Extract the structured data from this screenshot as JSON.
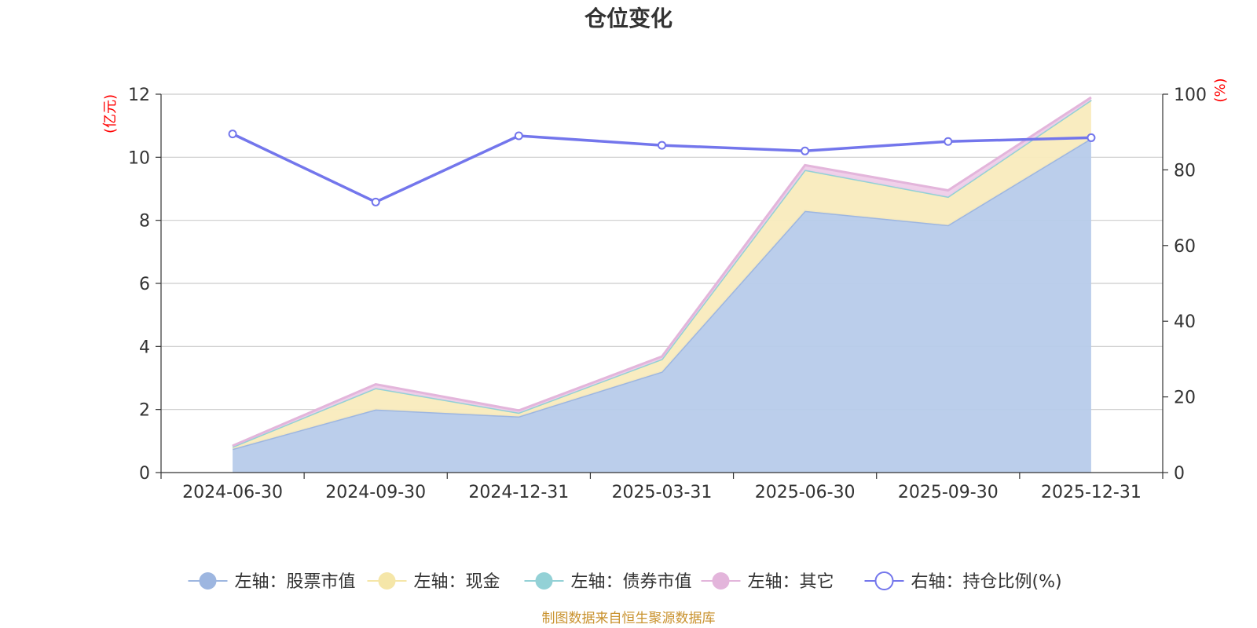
{
  "chart_data": {
    "type": "area",
    "title": "仓位变化",
    "categories": [
      "2024-06-30",
      "2024-09-30",
      "2024-12-31",
      "2025-03-31",
      "2025-06-30",
      "2025-09-30",
      "2025-12-31"
    ],
    "left_axis": {
      "unit": "(亿元)",
      "ylim": [
        0,
        12
      ],
      "ticks": [
        0,
        2,
        4,
        6,
        8,
        10,
        12
      ]
    },
    "right_axis": {
      "unit": "(%)",
      "ylim": [
        0,
        100
      ],
      "ticks": [
        0,
        20,
        40,
        60,
        80,
        100
      ]
    },
    "stacked": true,
    "series": [
      {
        "name": "左轴：股票市值",
        "axis": "left",
        "type": "area",
        "color": "#9db6e0",
        "fill": "#b7cbea",
        "values": [
          0.75,
          2.0,
          1.78,
          3.2,
          8.3,
          7.85,
          10.6
        ]
      },
      {
        "name": "左轴：现金",
        "axis": "left",
        "type": "area",
        "color": "#f5e6a8",
        "fill": "#f9ebbd",
        "values": [
          0.07,
          0.68,
          0.12,
          0.4,
          1.3,
          0.9,
          1.22
        ]
      },
      {
        "name": "左轴：债券市值",
        "axis": "left",
        "type": "area",
        "color": "#93d1d6",
        "fill": "#93d1d6",
        "values": [
          0,
          0,
          0,
          0,
          0,
          0,
          0
        ]
      },
      {
        "name": "左轴：其它",
        "axis": "left",
        "type": "area",
        "color": "#e3b5db",
        "fill": "#efcde9",
        "values": [
          0.03,
          0.12,
          0.07,
          0.08,
          0.15,
          0.2,
          0.08
        ]
      },
      {
        "name": "右轴：持仓比例(%)",
        "axis": "right",
        "type": "line",
        "color": "#7376ec",
        "values": [
          89.5,
          71.5,
          89.0,
          86.5,
          85.0,
          87.5,
          88.5
        ]
      }
    ],
    "legend_position": "bottom",
    "grid": true
  },
  "footer": {
    "source": "制图数据来自恒生聚源数据库"
  }
}
